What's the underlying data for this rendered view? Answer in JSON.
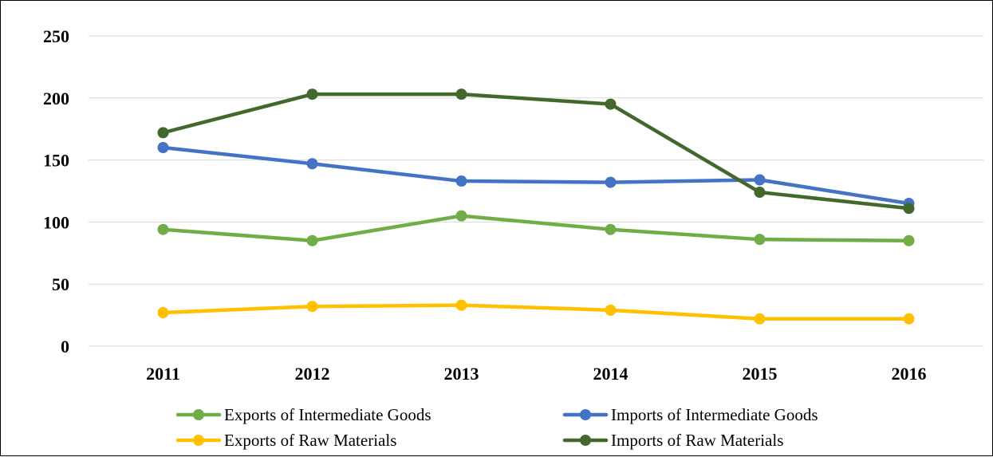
{
  "chart_data": {
    "type": "line",
    "title": "",
    "xlabel": "",
    "ylabel": "",
    "categories": [
      "2011",
      "2012",
      "2013",
      "2014",
      "2015",
      "2016"
    ],
    "ylim": [
      0,
      250
    ],
    "yticks": [
      0,
      50,
      100,
      150,
      200,
      250
    ],
    "grid": true,
    "legend_position": "bottom",
    "series": [
      {
        "name": "Exports of Intermediate Goods",
        "color": "#70ad47",
        "values": [
          94,
          85,
          105,
          94,
          86,
          85
        ]
      },
      {
        "name": "Imports of Intermediate Goods",
        "color": "#4472c4",
        "values": [
          160,
          147,
          133,
          132,
          134,
          115
        ]
      },
      {
        "name": "Exports of Raw Materials",
        "color": "#ffc000",
        "values": [
          27,
          32,
          33,
          29,
          22,
          22
        ]
      },
      {
        "name": "Imports of Raw Materials",
        "color": "#43682b",
        "values": [
          172,
          203,
          203,
          195,
          124,
          111
        ]
      }
    ]
  }
}
